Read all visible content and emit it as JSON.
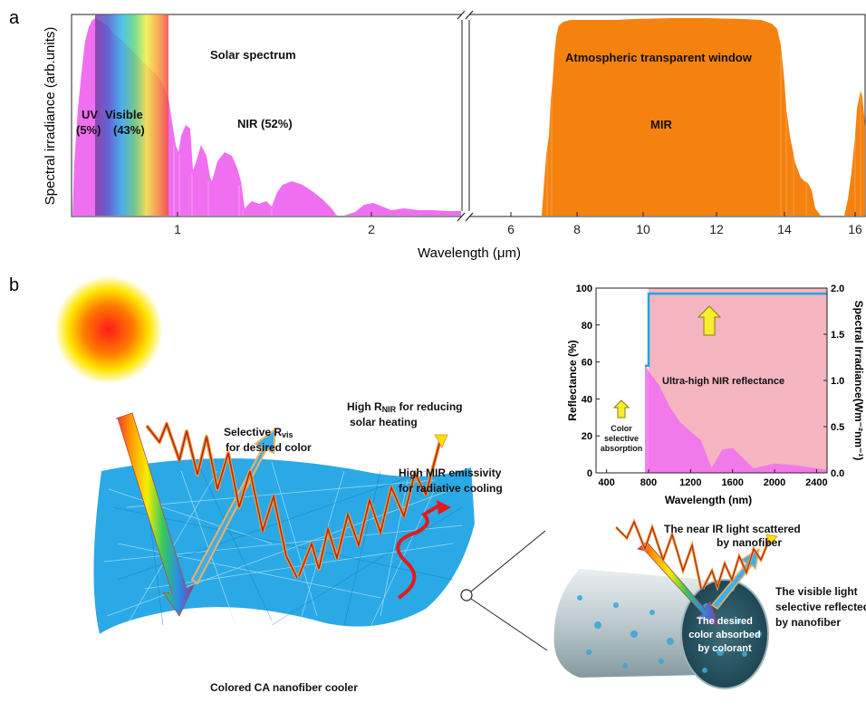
{
  "panel_a": {
    "letter": "a",
    "ylabel": "Spectral irradiance (arb.units)",
    "xlabel": "Wavelength (μm)",
    "xticks_left": [
      "1",
      "2"
    ],
    "xticks_right": [
      "6",
      "8",
      "10",
      "12",
      "14",
      "16"
    ],
    "uv_label_1": "UV",
    "uv_label_2": "(5%)",
    "visible_label_1": "Visible",
    "visible_label_2": "(43%)",
    "solar_label": "Solar spectrum",
    "nir_label": "NIR (52%)",
    "window_label": "Atmospheric transparent window",
    "mir_label": "MIR",
    "colors": {
      "solar": "#f06ff0",
      "mir": "#f5820f"
    }
  },
  "panel_b": {
    "letter": "b",
    "selective_vis_1": "Selective R",
    "selective_vis_sub": "vis",
    "selective_vis_2": "for desired color",
    "high_nir_1a": "High R",
    "high_nir_sub": "NIR",
    "high_nir_1b": " for reducing",
    "high_nir_2": "solar heating",
    "mir_emis_1": "High MIR emissivity",
    "mir_emis_2": "for radiative cooling",
    "cooler_caption": "Colored CA nanofiber cooler",
    "scatter_1": "The near IR light scattered",
    "scatter_2": "by nanofiber",
    "visible_refl_1": "The visible light",
    "visible_refl_2": "selective reflected",
    "visible_refl_3": "by nanofiber",
    "absorbed_1": "The desired",
    "absorbed_2": "color absorbed",
    "absorbed_3": "by colorant",
    "colors": {
      "fiber": "#2aa9e6",
      "cylinder": "#6fa9bd"
    }
  },
  "chart_data": {
    "type": "area",
    "xlabel": "Wavelength (nm)",
    "ylabel_left": "Reflectance (%)",
    "ylabel_right": "Spectral Irradiance(Wm⁻²nm⁻¹)",
    "x_ticks": [
      "400",
      "800",
      "1200",
      "1600",
      "2000",
      "2400"
    ],
    "y_ticks_left": [
      "0",
      "20",
      "40",
      "60",
      "80",
      "100"
    ],
    "y_ticks_right": [
      "0.0",
      "0.5",
      "1.0",
      "1.5",
      "2.0"
    ],
    "xlim": [
      300,
      2500
    ],
    "ylim_left": [
      0,
      100
    ],
    "ylim_right": [
      0,
      2.0
    ],
    "annotation_color": "Color selective absorption",
    "annotation_nir": "Ultra-high NIR reflectance",
    "reflectance": {
      "x": [
        300,
        340,
        340,
        800,
        800,
        2500
      ],
      "y": [
        97,
        97,
        58,
        58,
        97,
        97
      ]
    },
    "irradiance_envelope": {
      "x": [
        300,
        400,
        450,
        500,
        600,
        700,
        800,
        900,
        1000,
        1100,
        1200,
        1300,
        1400,
        1500,
        1600,
        1800,
        2000,
        2200,
        2400,
        2500
      ],
      "y": [
        0.1,
        1.5,
        1.6,
        1.6,
        1.5,
        1.35,
        1.1,
        0.95,
        0.72,
        0.55,
        0.45,
        0.35,
        0.05,
        0.25,
        0.27,
        0.05,
        0.1,
        0.08,
        0.05,
        0.03
      ]
    },
    "colors": {
      "visible_region": "#f06ff0",
      "nir_region": "#f5b5c0",
      "reflectance_line": "#19a8df"
    }
  }
}
